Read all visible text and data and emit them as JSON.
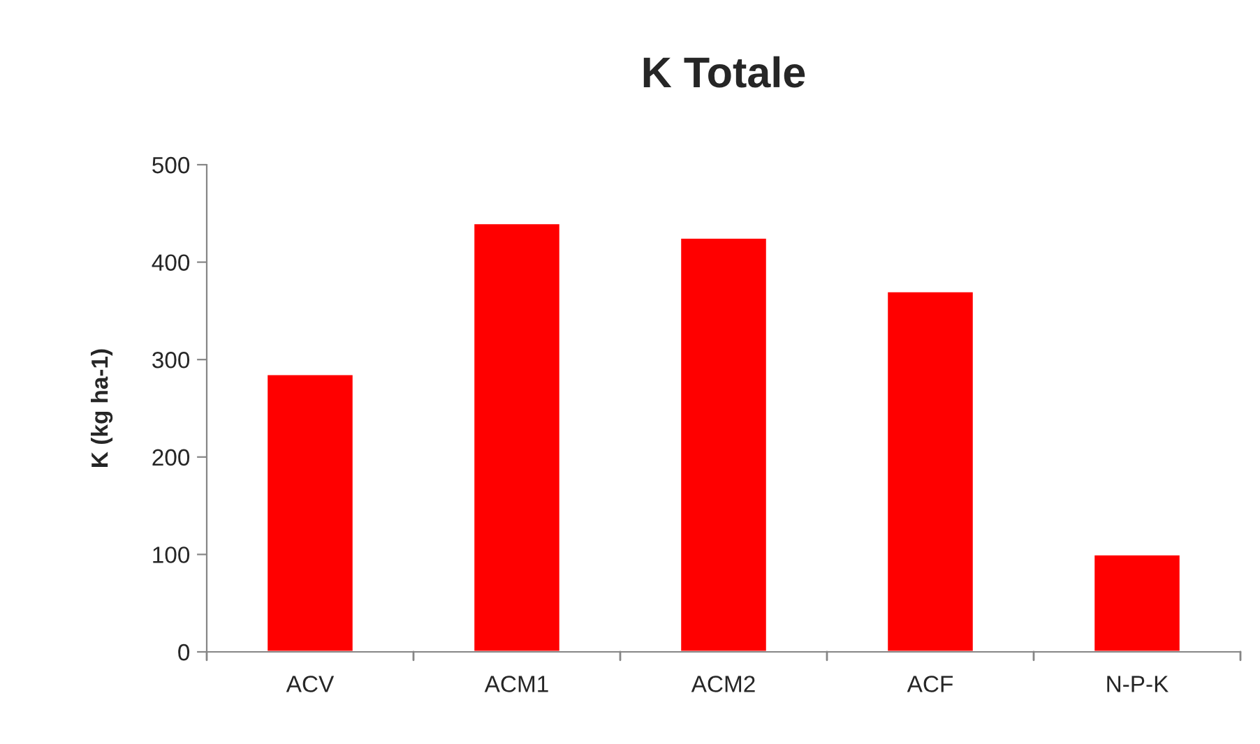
{
  "chart_data": {
    "type": "bar",
    "title": "K Totale",
    "ylabel": "K (kg ha-1)",
    "categories": [
      "ACV",
      "ACM1",
      "ACM2",
      "ACF",
      "N-P-K"
    ],
    "values": [
      285,
      440,
      425,
      370,
      100
    ],
    "color": "#ff0000",
    "ylim": [
      0,
      500
    ],
    "yticks": [
      0,
      100,
      200,
      300,
      400,
      500
    ],
    "grid": false,
    "legend": false
  }
}
